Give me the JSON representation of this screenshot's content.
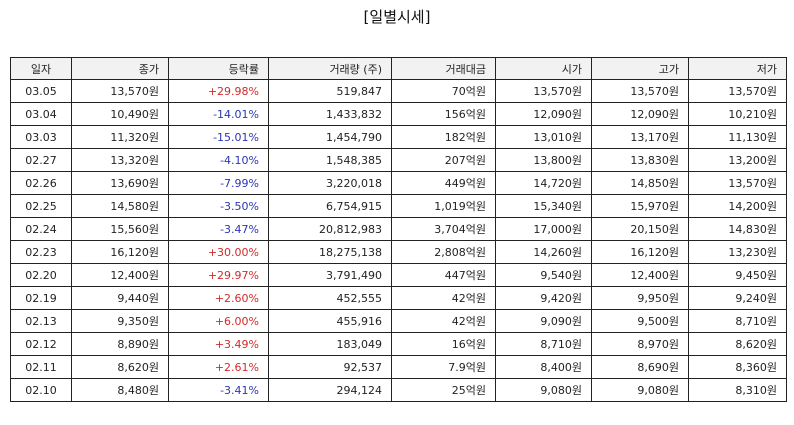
{
  "title": "[일별시세]",
  "columns": [
    "일자",
    "종가",
    "등락률",
    "거래량 (주)",
    "거래대금",
    "시가",
    "고가",
    "저가"
  ],
  "colors": {
    "up": "#d42a2a",
    "down": "#2a35b8"
  },
  "rows": [
    {
      "date": "03.05",
      "close": "13,570원",
      "change": "+29.98%",
      "dir": "up",
      "volume": "519,847",
      "amount": "70억원",
      "open": "13,570원",
      "high": "13,570원",
      "low": "13,570원"
    },
    {
      "date": "03.04",
      "close": "10,490원",
      "change": "-14.01%",
      "dir": "down",
      "volume": "1,433,832",
      "amount": "156억원",
      "open": "12,090원",
      "high": "12,090원",
      "low": "10,210원"
    },
    {
      "date": "03.03",
      "close": "11,320원",
      "change": "-15.01%",
      "dir": "down",
      "volume": "1,454,790",
      "amount": "182억원",
      "open": "13,010원",
      "high": "13,170원",
      "low": "11,130원"
    },
    {
      "date": "02.27",
      "close": "13,320원",
      "change": "-4.10%",
      "dir": "down",
      "volume": "1,548,385",
      "amount": "207억원",
      "open": "13,800원",
      "high": "13,830원",
      "low": "13,200원"
    },
    {
      "date": "02.26",
      "close": "13,690원",
      "change": "-7.99%",
      "dir": "down",
      "volume": "3,220,018",
      "amount": "449억원",
      "open": "14,720원",
      "high": "14,850원",
      "low": "13,570원"
    },
    {
      "date": "02.25",
      "close": "14,580원",
      "change": "-3.50%",
      "dir": "down",
      "volume": "6,754,915",
      "amount": "1,019억원",
      "open": "15,340원",
      "high": "15,970원",
      "low": "14,200원"
    },
    {
      "date": "02.24",
      "close": "15,560원",
      "change": "-3.47%",
      "dir": "down",
      "volume": "20,812,983",
      "amount": "3,704억원",
      "open": "17,000원",
      "high": "20,150원",
      "low": "14,830원"
    },
    {
      "date": "02.23",
      "close": "16,120원",
      "change": "+30.00%",
      "dir": "up",
      "volume": "18,275,138",
      "amount": "2,808억원",
      "open": "14,260원",
      "high": "16,120원",
      "low": "13,230원"
    },
    {
      "date": "02.20",
      "close": "12,400원",
      "change": "+29.97%",
      "dir": "up",
      "volume": "3,791,490",
      "amount": "447억원",
      "open": "9,540원",
      "high": "12,400원",
      "low": "9,450원"
    },
    {
      "date": "02.19",
      "close": "9,440원",
      "change": "+2.60%",
      "dir": "up",
      "volume": "452,555",
      "amount": "42억원",
      "open": "9,420원",
      "high": "9,950원",
      "low": "9,240원"
    },
    {
      "date": "02.13",
      "close": "9,350원",
      "change": "+6.00%",
      "dir": "up",
      "volume": "455,916",
      "amount": "42억원",
      "open": "9,090원",
      "high": "9,500원",
      "low": "8,710원"
    },
    {
      "date": "02.12",
      "close": "8,890원",
      "change": "+3.49%",
      "dir": "up",
      "volume": "183,049",
      "amount": "16억원",
      "open": "8,710원",
      "high": "8,970원",
      "low": "8,620원"
    },
    {
      "date": "02.11",
      "close": "8,620원",
      "change": "+2.61%",
      "dir": "up",
      "volume": "92,537",
      "amount": "7.9억원",
      "open": "8,400원",
      "high": "8,690원",
      "low": "8,360원"
    },
    {
      "date": "02.10",
      "close": "8,480원",
      "change": "-3.41%",
      "dir": "down",
      "volume": "294,124",
      "amount": "25억원",
      "open": "9,080원",
      "high": "9,080원",
      "low": "8,310원"
    }
  ]
}
